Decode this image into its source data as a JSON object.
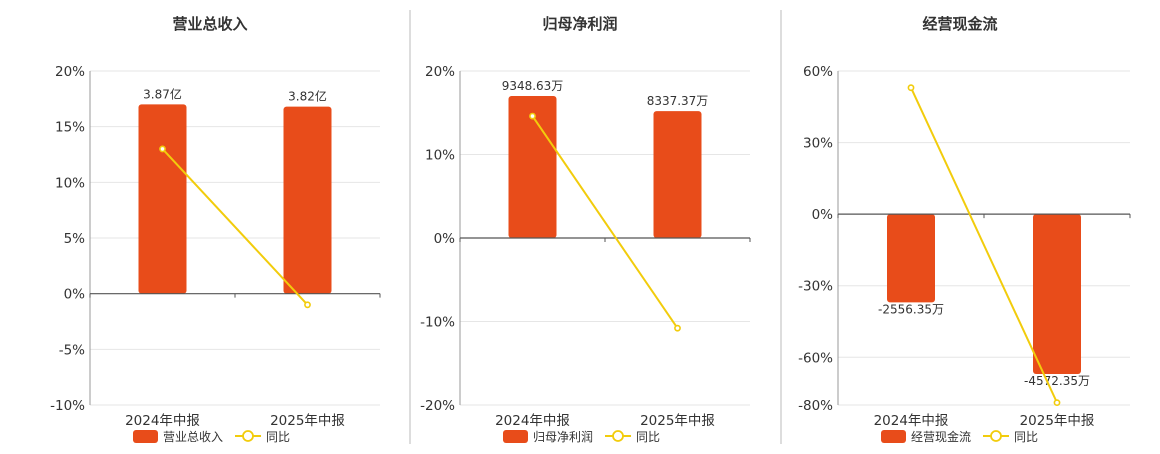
{
  "colors": {
    "bar": "#e84c1a",
    "line": "#f2cc0c",
    "grid": "#e6e6e6",
    "axis": "#555555",
    "divider": "#bbbbbb",
    "text": "#333333"
  },
  "chart_data": [
    {
      "type": "bar",
      "title": "营业总收入",
      "categories": [
        "2024年中报",
        "2025年中报"
      ],
      "ylim": [
        -10,
        20
      ],
      "yticks": [
        -10,
        -5,
        0,
        5,
        10,
        15,
        20
      ],
      "ytick_labels": [
        "-10%",
        "-5%",
        "0%",
        "5%",
        "10%",
        "15%",
        "20%"
      ],
      "series": [
        {
          "name": "营业总收入",
          "kind": "bar",
          "values": [
            17.0,
            16.8
          ],
          "labels": [
            "3.87亿",
            "3.82亿"
          ]
        },
        {
          "name": "同比",
          "kind": "line",
          "values": [
            13.0,
            -1.0
          ]
        }
      ],
      "legend": "bottom"
    },
    {
      "type": "bar",
      "title": "归母净利润",
      "categories": [
        "2024年中报",
        "2025年中报"
      ],
      "ylim": [
        -20,
        20
      ],
      "yticks": [
        -20,
        -10,
        0,
        10,
        20
      ],
      "ytick_labels": [
        "-20%",
        "-10%",
        "0%",
        "10%",
        "20%"
      ],
      "series": [
        {
          "name": "归母净利润",
          "kind": "bar",
          "values": [
            17.0,
            15.2
          ],
          "labels": [
            "9348.63万",
            "8337.37万"
          ]
        },
        {
          "name": "同比",
          "kind": "line",
          "values": [
            14.6,
            -10.8
          ]
        }
      ],
      "legend": "bottom"
    },
    {
      "type": "bar",
      "title": "经营现金流",
      "categories": [
        "2024年中报",
        "2025年中报"
      ],
      "ylim": [
        -80,
        60
      ],
      "yticks": [
        -80,
        -60,
        -30,
        0,
        30,
        60
      ],
      "ytick_labels": [
        "-80%",
        "-60%",
        "-30%",
        "0%",
        "30%",
        "60%"
      ],
      "series": [
        {
          "name": "经营现金流",
          "kind": "bar",
          "values": [
            -37,
            -67
          ],
          "labels": [
            "-2556.35万",
            "-4572.35万"
          ]
        },
        {
          "name": "同比",
          "kind": "line",
          "values": [
            53,
            -79
          ]
        }
      ],
      "legend": "bottom"
    }
  ]
}
